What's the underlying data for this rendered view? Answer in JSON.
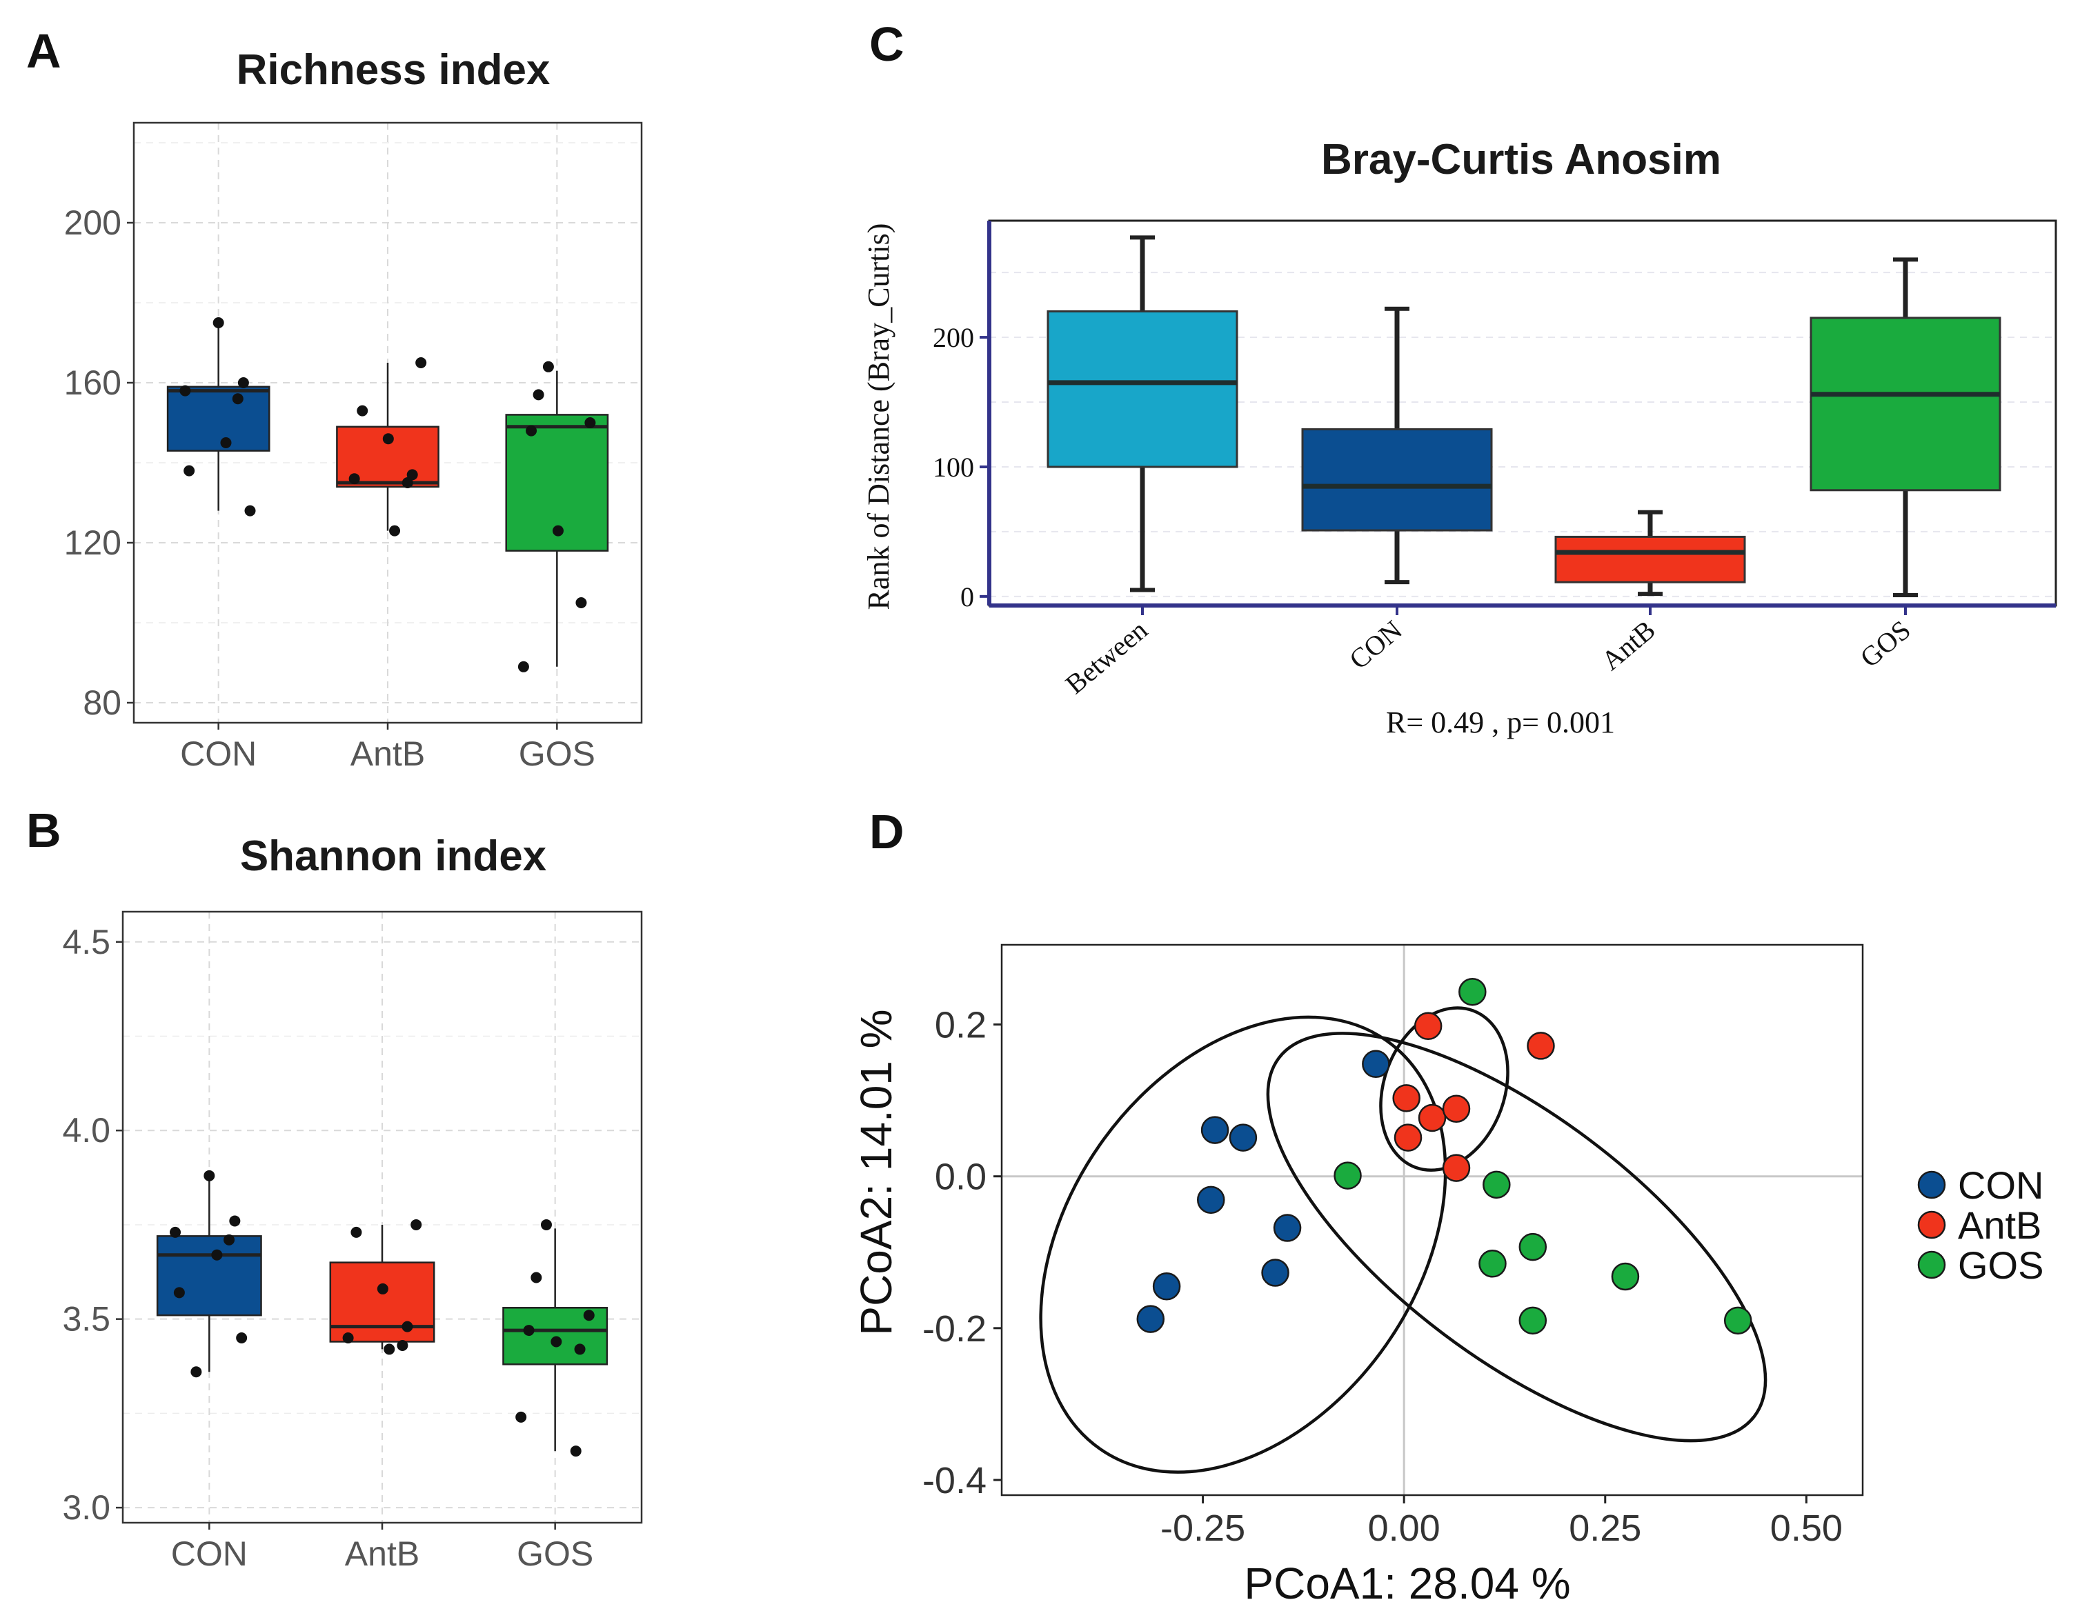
{
  "panels": {
    "A": {
      "letter": "A"
    },
    "B": {
      "letter": "B"
    },
    "C": {
      "letter": "C"
    },
    "D": {
      "letter": "D"
    }
  },
  "colors": {
    "CON": "#0b4e91",
    "AntB": "#f0341c",
    "GOS": "#1aab3e",
    "Between": "#18a6c9"
  },
  "chart_data": [
    {
      "panel": "A",
      "type": "box",
      "title": "Richness index",
      "ylim": [
        75,
        225
      ],
      "yticks": [
        80,
        120,
        160,
        200
      ],
      "ytick_labels": [
        "80",
        "120",
        "160",
        "200"
      ],
      "categories": [
        "CON",
        "AntB",
        "GOS"
      ],
      "boxes": [
        {
          "name": "CON",
          "q1": 143,
          "median": 158,
          "q3": 159,
          "whisker_low": 128,
          "whisker_high": 175,
          "points": [
            175,
            160,
            158,
            156,
            145,
            138,
            128
          ]
        },
        {
          "name": "AntB",
          "q1": 134,
          "median": 135,
          "q3": 149,
          "whisker_low": 123,
          "whisker_high": 165,
          "points": [
            165,
            153,
            146,
            137,
            136,
            135,
            123
          ]
        },
        {
          "name": "GOS",
          "q1": 118,
          "median": 149,
          "q3": 152,
          "whisker_low": 89,
          "whisker_high": 163,
          "points": [
            164,
            157,
            150,
            148,
            123,
            105,
            89
          ]
        }
      ]
    },
    {
      "panel": "B",
      "type": "box",
      "title": "Shannon index",
      "ylim": [
        2.96,
        4.58
      ],
      "yticks": [
        3.0,
        3.5,
        4.0,
        4.5
      ],
      "ytick_labels": [
        "3.0",
        "3.5",
        "4.0",
        "4.5"
      ],
      "categories": [
        "CON",
        "AntB",
        "GOS"
      ],
      "boxes": [
        {
          "name": "CON",
          "q1": 3.51,
          "median": 3.67,
          "q3": 3.72,
          "whisker_low": 3.36,
          "whisker_high": 3.88,
          "points": [
            3.88,
            3.76,
            3.73,
            3.71,
            3.67,
            3.57,
            3.45,
            3.36
          ]
        },
        {
          "name": "AntB",
          "q1": 3.44,
          "median": 3.48,
          "q3": 3.65,
          "whisker_low": 3.42,
          "whisker_high": 3.75,
          "points": [
            3.75,
            3.73,
            3.58,
            3.48,
            3.45,
            3.43,
            3.42
          ]
        },
        {
          "name": "GOS",
          "q1": 3.38,
          "median": 3.47,
          "q3": 3.53,
          "whisker_low": 3.15,
          "whisker_high": 3.74,
          "points": [
            3.75,
            3.61,
            3.51,
            3.47,
            3.44,
            3.42,
            3.24,
            3.15
          ]
        }
      ]
    },
    {
      "panel": "C",
      "type": "box",
      "title": "Bray-Curtis Anosim",
      "ylabel": "Rank of Distance (Bray_Curtis)",
      "annotation": "R= 0.49 ,  p= 0.001",
      "ylim": [
        -7,
        290
      ],
      "yticks": [
        0,
        100,
        200
      ],
      "ytick_labels": [
        "0",
        "100",
        "200"
      ],
      "categories": [
        "Between",
        "CON",
        "AntB",
        "GOS"
      ],
      "boxes": [
        {
          "name": "Between",
          "q1": 100,
          "median": 165,
          "q3": 220,
          "whisker_low": 5,
          "whisker_high": 277
        },
        {
          "name": "CON",
          "q1": 51,
          "median": 85,
          "q3": 129,
          "whisker_low": 11,
          "whisker_high": 222
        },
        {
          "name": "AntB",
          "q1": 11,
          "median": 34,
          "q3": 46,
          "whisker_low": 2,
          "whisker_high": 65
        },
        {
          "name": "GOS",
          "q1": 82,
          "median": 156,
          "q3": 215,
          "whisker_low": 1,
          "whisker_high": 260
        }
      ]
    },
    {
      "panel": "D",
      "type": "scatter",
      "xlabel": "PCoA1:  28.04 %",
      "ylabel": "PCoA2:  14.01 %",
      "xlim": [
        -0.5,
        0.57
      ],
      "ylim": [
        -0.42,
        0.305
      ],
      "xticks": [
        -0.25,
        0.0,
        0.25,
        0.5
      ],
      "xtick_labels": [
        "-0.25",
        "0.00",
        "0.25",
        "0.50"
      ],
      "yticks": [
        -0.4,
        -0.2,
        0.0,
        0.2
      ],
      "ytick_labels": [
        "-0.4",
        "-0.2",
        "0.0",
        "0.2"
      ],
      "legend": [
        "CON",
        "AntB",
        "GOS"
      ],
      "series": [
        {
          "name": "CON",
          "points": [
            [
              -0.035,
              0.148
            ],
            [
              -0.235,
              0.061
            ],
            [
              -0.2,
              0.051
            ],
            [
              -0.24,
              -0.031
            ],
            [
              -0.145,
              -0.068
            ],
            [
              -0.16,
              -0.127
            ],
            [
              -0.295,
              -0.145
            ],
            [
              -0.315,
              -0.188
            ]
          ]
        },
        {
          "name": "AntB",
          "points": [
            [
              0.03,
              0.198
            ],
            [
              0.17,
              0.172
            ],
            [
              0.003,
              0.103
            ],
            [
              0.035,
              0.077
            ],
            [
              0.065,
              0.089
            ],
            [
              0.005,
              0.051
            ],
            [
              0.065,
              0.011
            ]
          ]
        },
        {
          "name": "GOS",
          "points": [
            [
              0.085,
              0.243
            ],
            [
              -0.07,
              0.001
            ],
            [
              0.115,
              -0.011
            ],
            [
              0.11,
              -0.115
            ],
            [
              0.16,
              -0.093
            ],
            [
              0.275,
              -0.132
            ],
            [
              0.16,
              -0.19
            ],
            [
              0.415,
              -0.19
            ]
          ]
        }
      ],
      "ellipses": [
        {
          "group": "CON",
          "cx": -0.2,
          "cy": -0.09,
          "rx": 0.31,
          "ry": 0.23,
          "angle_deg": 55
        },
        {
          "group": "AntB",
          "cx": 0.05,
          "cy": 0.115,
          "rx": 0.075,
          "ry": 0.11,
          "angle_deg": -20
        },
        {
          "group": "GOS",
          "cx": 0.14,
          "cy": -0.08,
          "rx": 0.37,
          "ry": 0.16,
          "angle_deg": -37
        }
      ]
    }
  ]
}
